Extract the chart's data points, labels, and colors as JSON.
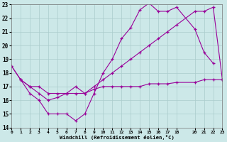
{
  "xlabel": "Windchill (Refroidissement éolien,°C)",
  "bg_color": "#cce8e8",
  "grid_color": "#aacccc",
  "line_color": "#990099",
  "xmin": 0,
  "xmax": 23,
  "ymin": 14,
  "ymax": 23,
  "xticks": [
    0,
    1,
    2,
    3,
    4,
    5,
    6,
    7,
    8,
    9,
    10,
    11,
    12,
    13,
    14,
    15,
    16,
    17,
    18,
    20,
    21,
    22,
    23
  ],
  "yticks": [
    14,
    15,
    16,
    17,
    18,
    19,
    20,
    21,
    22,
    23
  ],
  "series1_x": [
    0,
    1,
    2,
    3,
    4,
    5,
    6,
    7,
    8,
    9,
    10,
    11,
    12,
    13,
    14,
    15,
    16,
    17,
    18,
    20,
    21,
    22
  ],
  "series1_y": [
    18.5,
    17.5,
    16.5,
    16.0,
    15.0,
    15.0,
    15.0,
    14.5,
    15.0,
    16.5,
    18.0,
    19.0,
    20.5,
    21.3,
    22.6,
    23.1,
    22.5,
    22.5,
    22.8,
    21.2,
    19.5,
    18.7
  ],
  "series2_x": [
    0,
    1,
    2,
    3,
    4,
    5,
    6,
    7,
    8,
    9,
    10,
    11,
    12,
    13,
    14,
    15,
    16,
    17,
    18,
    20,
    21,
    22,
    23
  ],
  "series2_y": [
    18.5,
    17.5,
    17.0,
    16.5,
    16.0,
    16.2,
    16.5,
    17.0,
    16.5,
    17.0,
    17.5,
    18.0,
    18.5,
    19.0,
    19.5,
    20.0,
    20.5,
    21.0,
    21.5,
    22.5,
    22.5,
    22.8,
    17.5
  ],
  "series3_x": [
    1,
    2,
    3,
    4,
    5,
    6,
    7,
    8,
    9,
    10,
    11,
    12,
    13,
    14,
    15,
    16,
    17,
    18,
    20,
    21,
    22,
    23
  ],
  "series3_y": [
    17.5,
    17.0,
    17.0,
    16.5,
    16.5,
    16.5,
    16.5,
    16.5,
    16.8,
    17.0,
    17.0,
    17.0,
    17.0,
    17.0,
    17.2,
    17.2,
    17.2,
    17.3,
    17.3,
    17.5,
    17.5,
    17.5
  ]
}
